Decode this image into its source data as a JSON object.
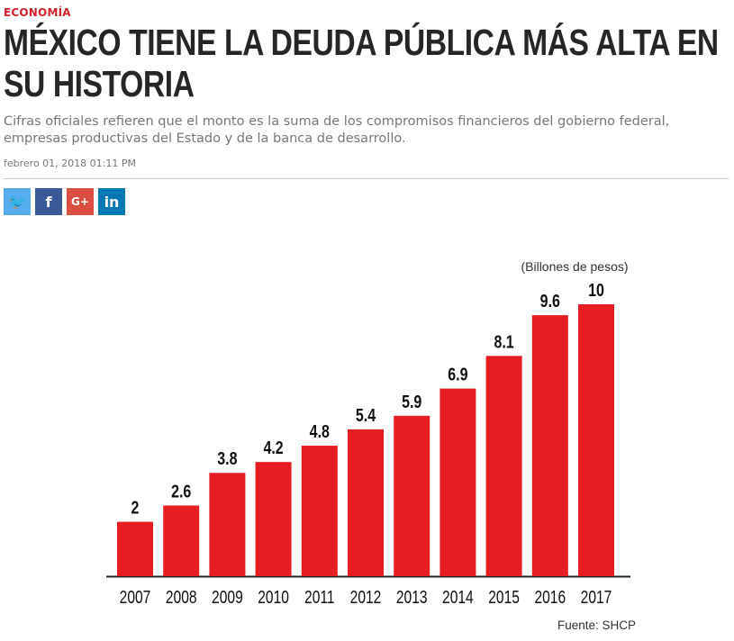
{
  "article": {
    "section": "ECONOMÍA",
    "title": "MÉXICO TIENE LA DEUDA PÚBLICA MÁS ALTA EN SU HISTORIA",
    "subtitle": "Cifras oficiales refieren que el monto es la suma de los compromisos financieros del gobierno federal, empresas productivas del Estado y de la banca de desarrollo.",
    "date": "febrero 01, 2018 01:11 PM"
  },
  "share": [
    {
      "name": "twitter",
      "glyph": "🐦",
      "color": "#55acee"
    },
    {
      "name": "facebook",
      "glyph": "f",
      "color": "#3b5998"
    },
    {
      "name": "google-plus",
      "glyph": "G+",
      "color": "#dc4e41"
    },
    {
      "name": "linkedin",
      "glyph": "in",
      "color": "#0077b5"
    }
  ],
  "chart_data": {
    "type": "bar",
    "unit_label": "(Billones de pesos)",
    "source": "Fuente: SHCP",
    "categories": [
      "2007",
      "2008",
      "2009",
      "2010",
      "2011",
      "2012",
      "2013",
      "2014",
      "2015",
      "2016",
      "2017"
    ],
    "values": [
      2,
      2.6,
      3.8,
      4.2,
      4.8,
      5.4,
      5.9,
      6.9,
      8.1,
      9.6,
      10
    ],
    "data_labels": [
      "2",
      "2.6",
      "3.8",
      "4.2",
      "4.8",
      "5.4",
      "5.9",
      "6.9",
      "8.1",
      "9.6",
      "10"
    ],
    "bar_color": "#e61e24",
    "ylim": [
      0,
      10
    ],
    "grid": false
  }
}
